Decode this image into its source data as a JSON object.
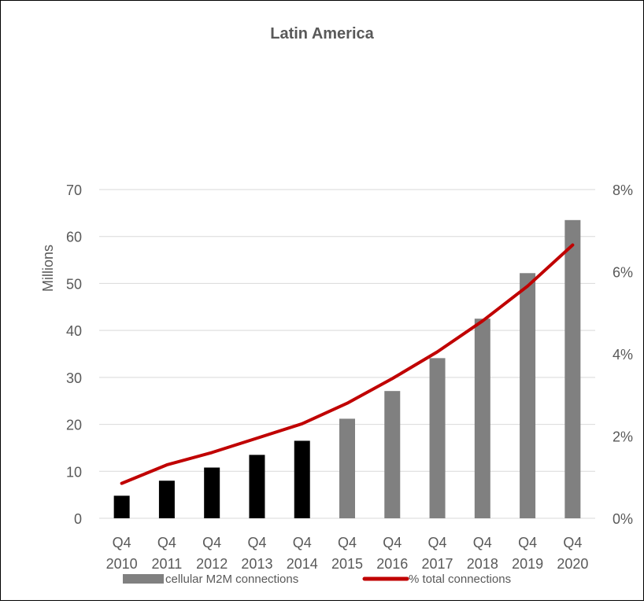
{
  "chart_data": {
    "type": "bar",
    "title": "Latin America",
    "ylabel": "Millions",
    "y2label": "",
    "xlabel": "",
    "categories": [
      [
        "Q4",
        "2010"
      ],
      [
        "Q4",
        "2011"
      ],
      [
        "Q4",
        "2012"
      ],
      [
        "Q4",
        "2013"
      ],
      [
        "Q4",
        "2014"
      ],
      [
        "Q4",
        "2015"
      ],
      [
        "Q4",
        "2016"
      ],
      [
        "Q4",
        "2017"
      ],
      [
        "Q4",
        "2018"
      ],
      [
        "Q4",
        "2019"
      ],
      [
        "Q4",
        "2020"
      ]
    ],
    "ylim": [
      0,
      70
    ],
    "yticks": [
      0,
      10,
      20,
      30,
      40,
      50,
      60,
      70
    ],
    "y2lim": [
      0,
      8
    ],
    "y2ticks": [
      0,
      2,
      4,
      6,
      8
    ],
    "y2tick_labels": [
      "0%",
      "2%",
      "4%",
      "6%",
      "8%"
    ],
    "grid": true,
    "legend_position": "bottom",
    "series": [
      {
        "name": "cellular M2M connections",
        "type": "bar",
        "axis": "left",
        "color": "#808080",
        "historic_color": "#000000",
        "historic_through_index": 4,
        "values": [
          4.8,
          8.0,
          10.8,
          13.5,
          16.5,
          21.2,
          27.1,
          34.1,
          42.5,
          52.2,
          63.5
        ]
      },
      {
        "name": "% total connections",
        "type": "line",
        "axis": "right",
        "color": "#C00000",
        "values": [
          0.85,
          1.3,
          1.6,
          1.95,
          2.3,
          2.8,
          3.4,
          4.05,
          4.8,
          5.65,
          6.65
        ]
      }
    ]
  }
}
